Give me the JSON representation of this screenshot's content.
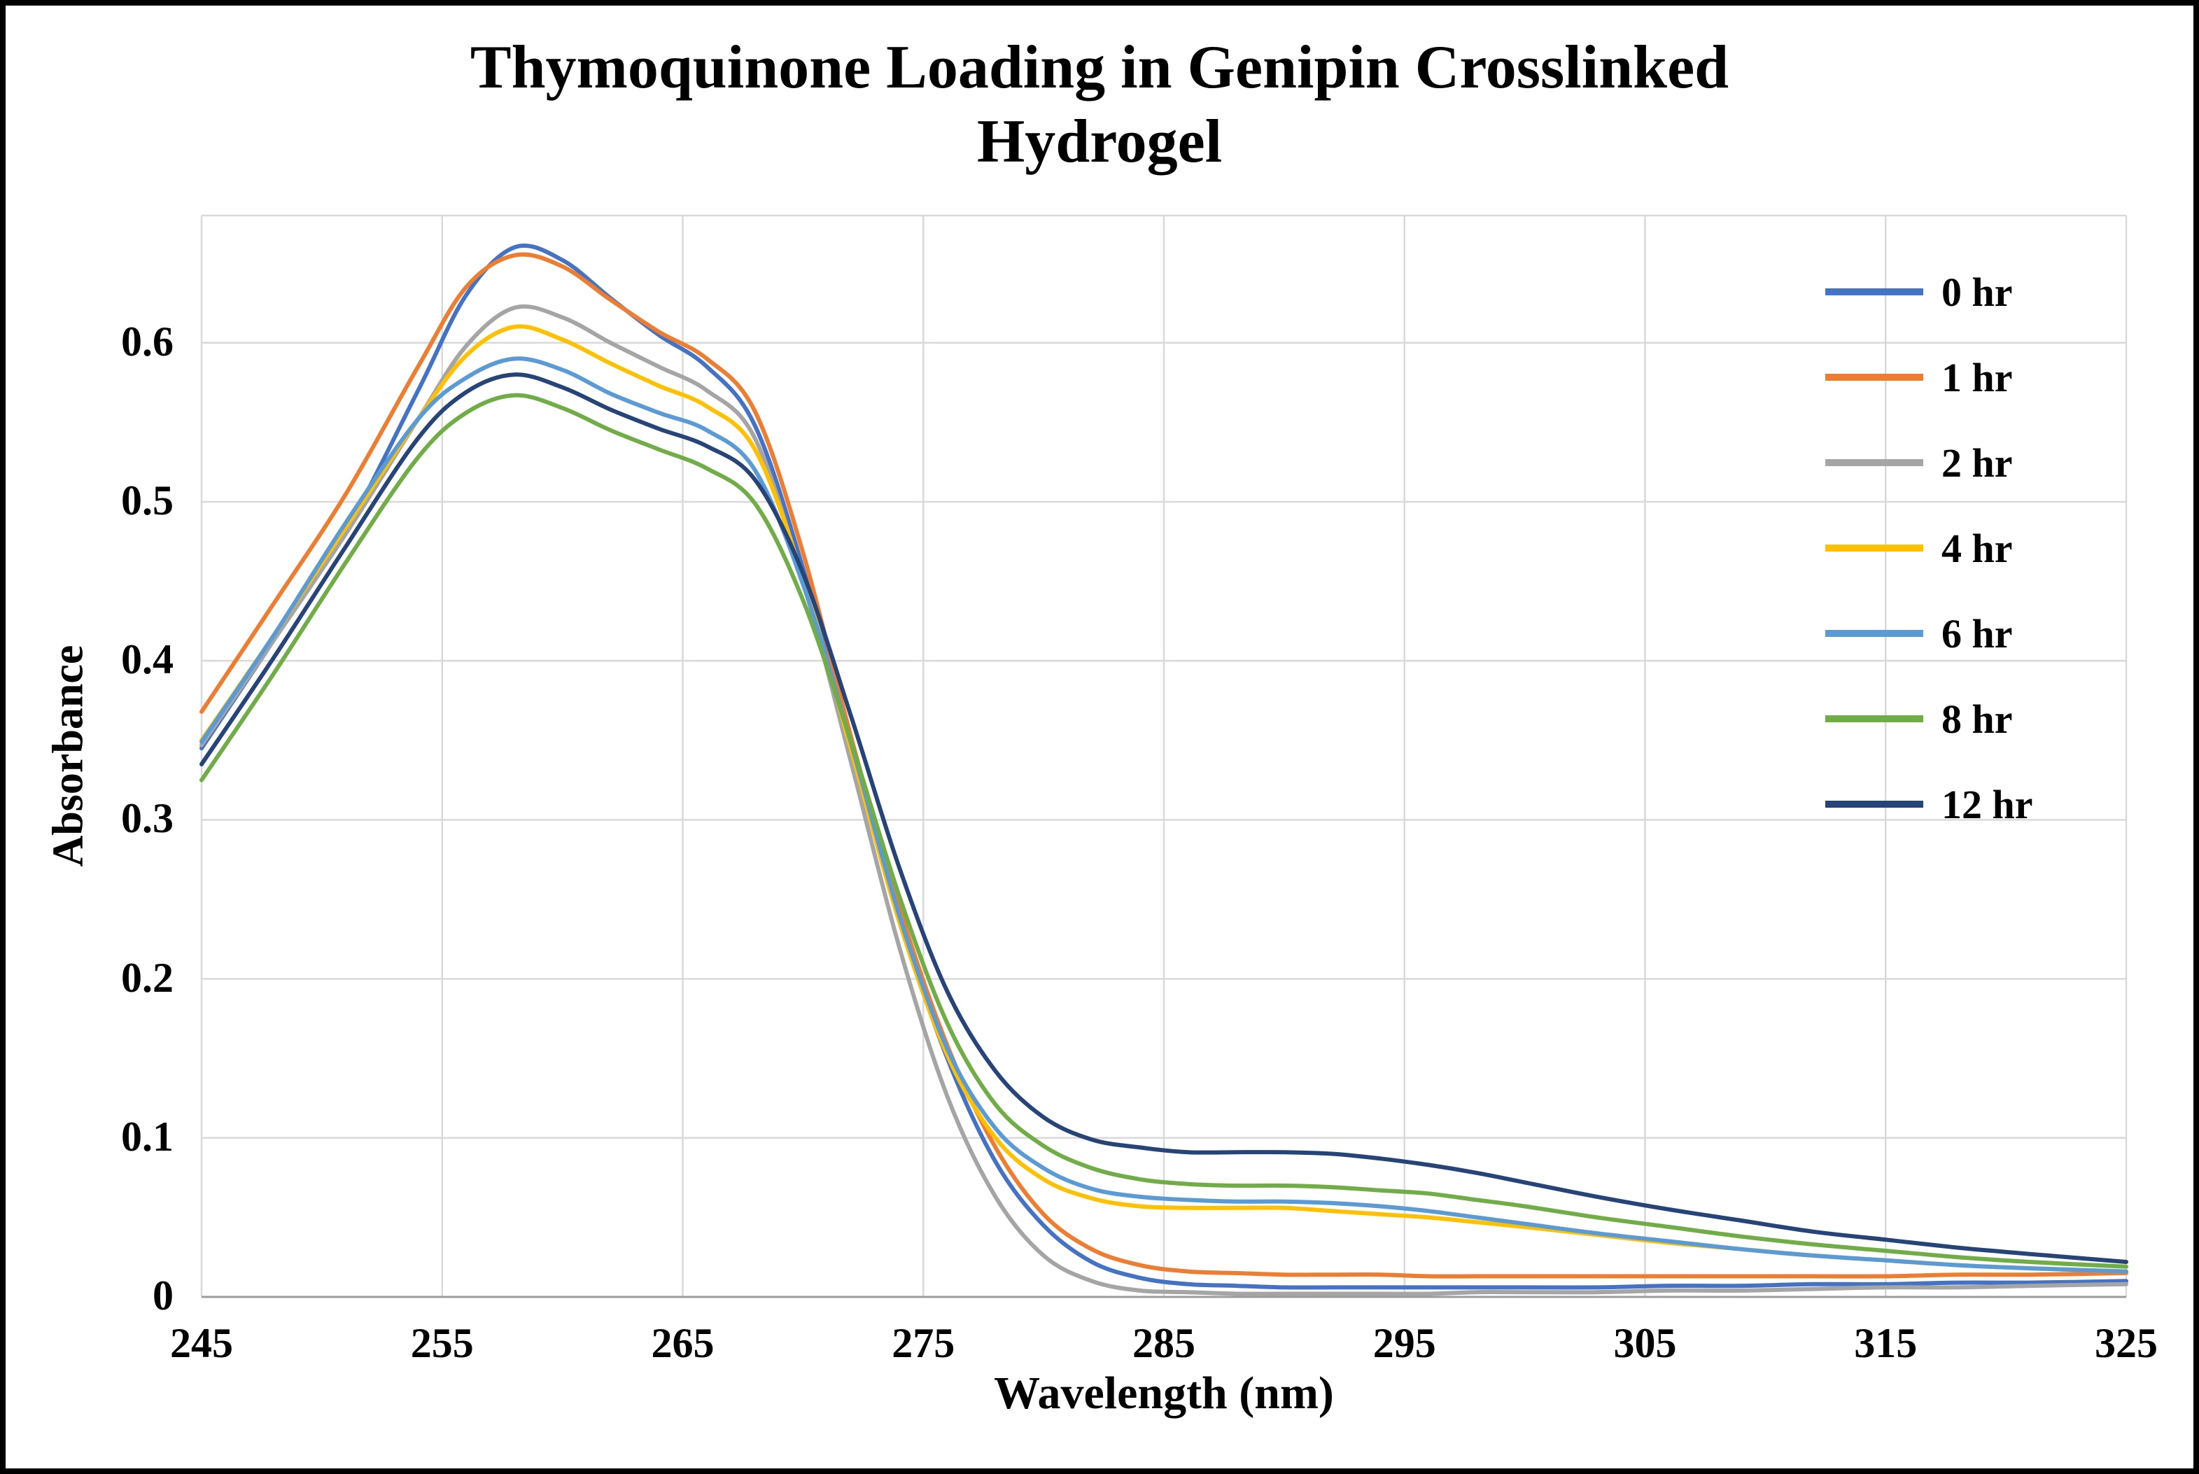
{
  "figure": {
    "title_lines": [
      "Thymoquinone Loading in Genipin Crosslinked",
      "Hydrogel"
    ]
  },
  "chart_data": {
    "type": "line",
    "title": "Thymoquinone Loading in Genipin Crosslinked Hydrogel",
    "xlabel": "Wavelength (nm)",
    "ylabel": "Absorbance",
    "xlim": [
      245,
      325
    ],
    "ylim": [
      0,
      0.68
    ],
    "x_ticks": [
      245,
      255,
      265,
      275,
      285,
      295,
      305,
      315,
      325
    ],
    "y_ticks": [
      0,
      0.1,
      0.2,
      0.3,
      0.4,
      0.5,
      0.6
    ],
    "y_tick_labels": [
      "0",
      "0.1",
      "0.2",
      "0.3",
      "0.4",
      "0.5",
      "0.6"
    ],
    "grid": true,
    "legend_position": "inside-top-right",
    "colors": {
      "gridline": "#D9D9D9",
      "axis_line": "#9C9C9C",
      "border": "#000000",
      "background": "#FFFFFF"
    },
    "x": [
      245,
      248,
      251,
      254,
      256,
      258,
      260,
      262,
      264,
      266,
      268,
      270,
      272,
      274,
      276,
      278,
      280,
      282,
      284,
      286,
      288,
      290,
      292,
      294,
      296,
      298,
      300,
      303,
      306,
      309,
      312,
      315,
      318,
      321,
      325
    ],
    "series": [
      {
        "name": "0 hr",
        "color": "#4472C4",
        "values": [
          0.345,
          0.413,
          0.482,
          0.57,
          0.63,
          0.66,
          0.652,
          0.628,
          0.605,
          0.585,
          0.548,
          0.458,
          0.345,
          0.238,
          0.15,
          0.085,
          0.045,
          0.022,
          0.012,
          0.008,
          0.007,
          0.006,
          0.006,
          0.006,
          0.006,
          0.006,
          0.006,
          0.006,
          0.007,
          0.007,
          0.008,
          0.008,
          0.009,
          0.009,
          0.01
        ]
      },
      {
        "name": "1 hr",
        "color": "#ED7D31",
        "values": [
          0.368,
          0.436,
          0.505,
          0.585,
          0.635,
          0.655,
          0.648,
          0.627,
          0.607,
          0.59,
          0.557,
          0.468,
          0.352,
          0.245,
          0.158,
          0.094,
          0.052,
          0.03,
          0.02,
          0.016,
          0.015,
          0.014,
          0.014,
          0.014,
          0.013,
          0.013,
          0.013,
          0.013,
          0.013,
          0.013,
          0.013,
          0.013,
          0.014,
          0.014,
          0.015
        ]
      },
      {
        "name": "2 hr",
        "color": "#A5A5A5",
        "values": [
          0.347,
          0.413,
          0.48,
          0.552,
          0.598,
          0.622,
          0.616,
          0.6,
          0.585,
          0.57,
          0.54,
          0.45,
          0.336,
          0.22,
          0.126,
          0.063,
          0.026,
          0.01,
          0.004,
          0.003,
          0.002,
          0.002,
          0.002,
          0.002,
          0.002,
          0.003,
          0.003,
          0.003,
          0.004,
          0.004,
          0.005,
          0.006,
          0.006,
          0.007,
          0.008
        ]
      },
      {
        "name": "4 hr",
        "color": "#FFC000",
        "values": [
          0.35,
          0.416,
          0.484,
          0.552,
          0.592,
          0.61,
          0.602,
          0.587,
          0.573,
          0.56,
          0.533,
          0.452,
          0.344,
          0.236,
          0.152,
          0.1,
          0.074,
          0.062,
          0.057,
          0.056,
          0.056,
          0.056,
          0.054,
          0.052,
          0.05,
          0.047,
          0.044,
          0.039,
          0.034,
          0.03,
          0.026,
          0.023,
          0.02,
          0.018,
          0.016
        ]
      },
      {
        "name": "6 hr",
        "color": "#5B9BD5",
        "values": [
          0.349,
          0.416,
          0.487,
          0.552,
          0.578,
          0.59,
          0.583,
          0.568,
          0.556,
          0.545,
          0.52,
          0.448,
          0.348,
          0.24,
          0.156,
          0.106,
          0.081,
          0.068,
          0.063,
          0.061,
          0.06,
          0.06,
          0.059,
          0.057,
          0.054,
          0.05,
          0.046,
          0.04,
          0.035,
          0.03,
          0.026,
          0.023,
          0.02,
          0.018,
          0.016
        ]
      },
      {
        "name": "8 hr",
        "color": "#70AD47",
        "values": [
          0.325,
          0.392,
          0.462,
          0.528,
          0.556,
          0.567,
          0.559,
          0.545,
          0.533,
          0.521,
          0.499,
          0.438,
          0.349,
          0.252,
          0.172,
          0.121,
          0.095,
          0.081,
          0.074,
          0.071,
          0.07,
          0.07,
          0.069,
          0.067,
          0.065,
          0.061,
          0.057,
          0.05,
          0.044,
          0.038,
          0.033,
          0.029,
          0.025,
          0.022,
          0.019
        ]
      },
      {
        "name": "12 hr",
        "color": "#264478",
        "values": [
          0.335,
          0.402,
          0.472,
          0.54,
          0.569,
          0.58,
          0.572,
          0.558,
          0.546,
          0.535,
          0.514,
          0.455,
          0.365,
          0.27,
          0.192,
          0.142,
          0.113,
          0.099,
          0.094,
          0.091,
          0.091,
          0.091,
          0.09,
          0.087,
          0.083,
          0.078,
          0.072,
          0.063,
          0.055,
          0.048,
          0.041,
          0.036,
          0.031,
          0.027,
          0.022
        ]
      }
    ]
  }
}
